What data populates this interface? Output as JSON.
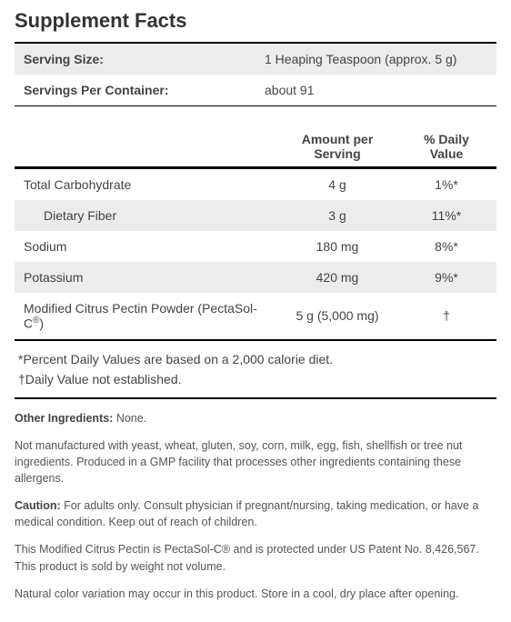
{
  "title": "Supplement Facts",
  "header": {
    "servingSizeLabel": "Serving Size:",
    "servingSizeValue": "1 Heaping Teaspoon (approx. 5 g)",
    "servingsLabel": "Servings Per Container:",
    "servingsValue": "about 91"
  },
  "columns": {
    "amount": "Amount per Serving",
    "dv": "% Daily Value"
  },
  "rows": [
    {
      "name": "Total Carbohydrate",
      "amount": "4 g",
      "dv": "1%*",
      "indent": false
    },
    {
      "name": "Dietary Fiber",
      "amount": "3 g",
      "dv": "11%*",
      "indent": true
    },
    {
      "name": "Sodium",
      "amount": "180 mg",
      "dv": "8%*",
      "indent": false
    },
    {
      "name": "Potassium",
      "amount": "420 mg",
      "dv": "9%*",
      "indent": false
    },
    {
      "name": "Modified Citrus Pectin Powder (PectaSol-C®)",
      "amount": "5 g (5,000 mg)",
      "dv": "†",
      "indent": false
    }
  ],
  "footnotes": {
    "pdv": "*Percent Daily Values are based on a 2,000 calorie diet.",
    "dagger": "†Daily Value not established."
  },
  "extras": {
    "otherIngredientsLabel": "Other Ingredients:",
    "otherIngredientsValue": " None.",
    "allergen": "Not manufactured with yeast, wheat, gluten, soy, corn, milk, egg, fish, shellfish or tree nut ingredients. Produced in a GMP facility that processes other ingredients containing these allergens.",
    "cautionLabel": "Caution:",
    "cautionValue": " For adults only. Consult physician if pregnant/nursing, taking medication, or have a medical condition. Keep out of reach of children.",
    "patent": "This Modified Citrus Pectin is PectaSol-C® and is protected under US Patent No. 8,426,567. This product is sold by weight not volume.",
    "storage": "Natural color variation may occur in this product. Store in a cool, dry place after opening."
  }
}
